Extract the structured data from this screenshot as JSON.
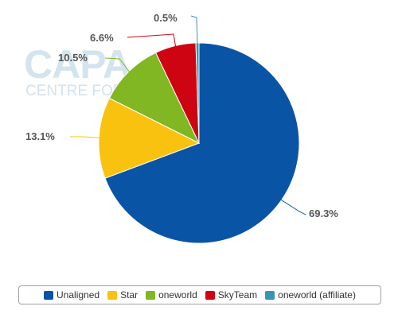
{
  "watermark": {
    "line1": "CAPA",
    "line2": "CENTRE FOR"
  },
  "chart_data": {
    "type": "pie",
    "title": "",
    "categories": [
      "Unaligned",
      "Star",
      "oneworld",
      "SkyTeam",
      "oneworld (affiliate)"
    ],
    "values": [
      69.3,
      13.1,
      10.5,
      6.6,
      0.5
    ],
    "labels": [
      "69.3%",
      "13.1%",
      "10.5%",
      "6.6%",
      "0.5%"
    ],
    "colors": [
      "#0a54a6",
      "#f9c20f",
      "#80b722",
      "#cf0412",
      "#3a94b3"
    ],
    "legend_position": "bottom",
    "start_angle": "top, clockwise"
  }
}
